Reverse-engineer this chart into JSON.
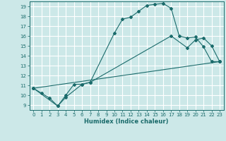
{
  "xlabel": "Humidex (Indice chaleur)",
  "xlim": [
    -0.5,
    23.5
  ],
  "ylim": [
    8.5,
    19.5
  ],
  "yticks": [
    9,
    10,
    11,
    12,
    13,
    14,
    15,
    16,
    17,
    18,
    19
  ],
  "xticks": [
    0,
    1,
    2,
    3,
    4,
    5,
    6,
    7,
    8,
    9,
    10,
    11,
    12,
    13,
    14,
    15,
    16,
    17,
    18,
    19,
    20,
    21,
    22,
    23
  ],
  "bg_color": "#cce8e8",
  "line_color": "#1a6b6b",
  "grid_color": "#ffffff",
  "line1_x": [
    0,
    1,
    2,
    3,
    4,
    5,
    6,
    7,
    10,
    11,
    12,
    13,
    14,
    15,
    16,
    17,
    18,
    19,
    20,
    21,
    22,
    23
  ],
  "line1_y": [
    10.7,
    10.2,
    9.7,
    8.9,
    10.0,
    11.1,
    11.1,
    11.3,
    16.3,
    17.7,
    17.9,
    18.5,
    19.1,
    19.2,
    19.3,
    18.8,
    16.0,
    15.8,
    15.9,
    14.9,
    13.4,
    13.4
  ],
  "line2_x": [
    0,
    3,
    4,
    6,
    7,
    17,
    19,
    20,
    21,
    22,
    23
  ],
  "line2_y": [
    10.7,
    8.9,
    9.8,
    11.1,
    11.3,
    16.0,
    14.8,
    15.6,
    15.8,
    15.0,
    13.4
  ],
  "line3_x": [
    0,
    23
  ],
  "line3_y": [
    10.7,
    13.4
  ]
}
